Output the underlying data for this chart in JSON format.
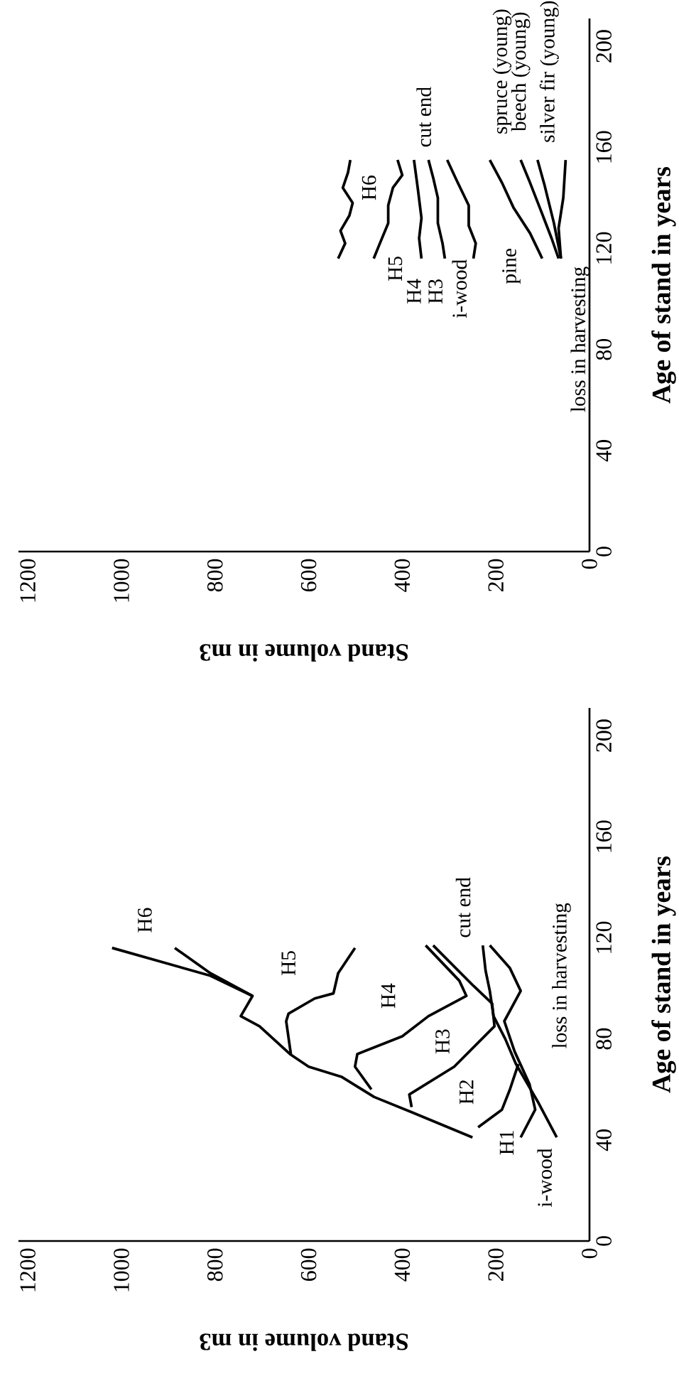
{
  "chart_data": [
    {
      "type": "line",
      "xlabel": "Stand volume in m3",
      "ylabel": "Age of stand in years",
      "xlim": [
        1220,
        0
      ],
      "ylim": [
        0,
        211
      ],
      "xticks": [
        0,
        200,
        400,
        600,
        800,
        1000,
        1200
      ],
      "yticks": [
        0,
        40,
        80,
        120,
        160,
        200
      ],
      "series": [
        {
          "name": "H6",
          "color": "#000000",
          "x": [
            250,
            380,
            460,
            530,
            600,
            640,
            705,
            745,
            720,
            810,
            1020
          ],
          "values": [
            41,
            51,
            57,
            65,
            69,
            74,
            85,
            89,
            97,
            105,
            116
          ]
        },
        {
          "color": "#000000",
          "x": [
            720,
            810,
            886
          ],
          "values": [
            97,
            106,
            116
          ]
        },
        {
          "name": "H5",
          "color": "#000000",
          "x": [
            638,
            648,
            643,
            587,
            547,
            537,
            501
          ],
          "values": [
            74,
            87,
            90,
            96,
            98,
            106,
            116
          ]
        },
        {
          "name": "H4",
          "color": "#000000",
          "x": [
            466,
            501,
            496,
            400,
            344,
            263,
            278,
            350
          ],
          "values": [
            60,
            69,
            74,
            81,
            89,
            97,
            103,
            117
          ]
        },
        {
          "name": "H3",
          "color": "#000000",
          "x": [
            380,
            385,
            289,
            203,
            208,
            248,
            334
          ],
          "values": [
            53,
            58,
            69,
            85,
            94,
            101,
            117
          ]
        },
        {
          "name": "H2",
          "color": "#000000",
          "x": [
            238,
            187,
            170,
            152
          ],
          "values": [
            45,
            52,
            60,
            70
          ]
        },
        {
          "name": "H1",
          "color": "#000000",
          "x": [
            147,
            116,
            128,
            160,
            182,
            147,
            170,
            213
          ],
          "values": [
            41,
            52,
            62,
            75,
            87,
            99,
            108,
            117
          ]
        },
        {
          "name": "i-wood",
          "color": "#000000",
          "x": [
            70,
            110,
            157,
            180,
            205,
            213,
            222,
            228
          ],
          "values": [
            41,
            55,
            70,
            80,
            89,
            99,
            107,
            117
          ]
        }
      ],
      "annotations": [
        "cut end",
        "loss in harvesting"
      ]
    },
    {
      "type": "line",
      "xlabel": "Stand volume in m3",
      "ylabel": "Age of stand in years",
      "xlim": [
        1220,
        0
      ],
      "ylim": [
        0,
        211
      ],
      "xticks": [
        0,
        200,
        400,
        600,
        800,
        1000,
        1200
      ],
      "yticks": [
        0,
        40,
        80,
        120,
        160,
        200
      ],
      "series": [
        {
          "name": "H6",
          "color": "#000000",
          "x": [
            537,
            522,
            532,
            513,
            506,
            527,
            516,
            511
          ],
          "values": [
            116,
            122,
            127,
            133,
            138,
            144,
            150,
            155
          ]
        },
        {
          "name": "H5",
          "color": "#000000",
          "x": [
            461,
            450,
            430,
            430,
            420,
            400,
            410
          ],
          "values": [
            116,
            121,
            130,
            137,
            144,
            149,
            155
          ]
        },
        {
          "name": "H4",
          "color": "#000000",
          "x": [
            359,
            364,
            359,
            367,
            375
          ],
          "values": [
            116,
            124,
            132,
            144,
            155
          ]
        },
        {
          "name": "H3",
          "color": "#000000",
          "x": [
            309,
            314,
            324,
            324,
            334,
            344
          ],
          "values": [
            116,
            122,
            130,
            140,
            148,
            155
          ]
        },
        {
          "name": "i-wood",
          "color": "#000000",
          "x": [
            248,
            243,
            258,
            258,
            284,
            304
          ],
          "values": [
            116,
            122,
            129,
            137,
            147,
            155
          ]
        },
        {
          "name": "pine",
          "color": "#000000",
          "x": [
            101,
            127,
            162,
            187,
            213
          ],
          "values": [
            116,
            126,
            136,
            146,
            155
          ]
        },
        {
          "name": "spruce (young)",
          "color": "#000000",
          "x": [
            66,
            81,
            106,
            127,
            147
          ],
          "values": [
            116,
            124,
            136,
            146,
            155
          ]
        },
        {
          "name": "beech (young)",
          "color": "#000000",
          "x": [
            61,
            76,
            96,
            111
          ],
          "values": [
            116,
            130,
            145,
            155
          ]
        },
        {
          "name": "silver fir (young)",
          "color": "#000000",
          "x": [
            61,
            66,
            56,
            51
          ],
          "values": [
            116,
            128,
            140,
            155
          ]
        }
      ],
      "annotations": [
        "cut end",
        "loss in harvesting"
      ]
    }
  ]
}
